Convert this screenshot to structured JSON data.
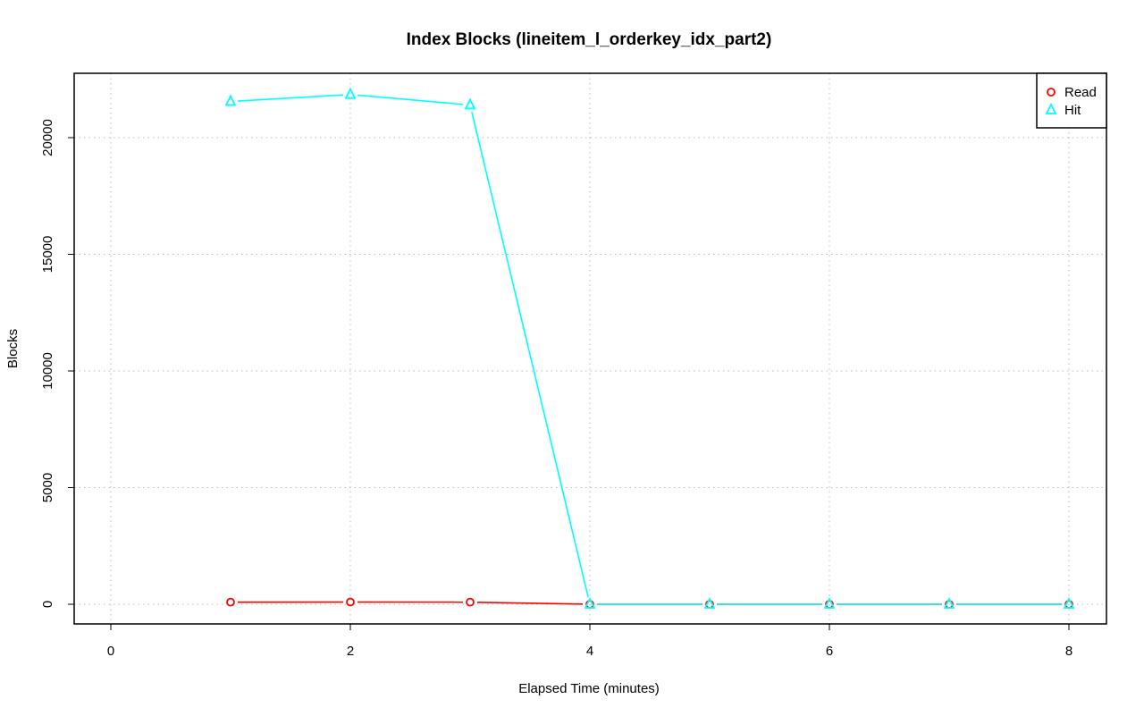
{
  "chart_data": {
    "type": "line",
    "title": "Index Blocks (lineitem_l_orderkey_idx_part2)",
    "xlabel": "Elapsed Time (minutes)",
    "ylabel": "Blocks",
    "xlim": [
      0,
      8
    ],
    "ylim": [
      0,
      22000
    ],
    "xticks": [
      0,
      2,
      4,
      6,
      8
    ],
    "yticks": [
      0,
      5000,
      10000,
      15000,
      20000
    ],
    "grid": true,
    "legend_position": "top-right",
    "x": [
      1,
      2,
      3,
      4,
      5,
      6,
      7,
      8
    ],
    "series": [
      {
        "name": "Read",
        "color": "#ff0000",
        "marker": "circle",
        "values": [
          90,
          95,
          90,
          0,
          0,
          0,
          0,
          0
        ]
      },
      {
        "name": "Hit",
        "color": "#00ffff",
        "marker": "triangle",
        "values": [
          21550,
          21850,
          21400,
          0,
          0,
          0,
          0,
          0
        ]
      }
    ]
  }
}
